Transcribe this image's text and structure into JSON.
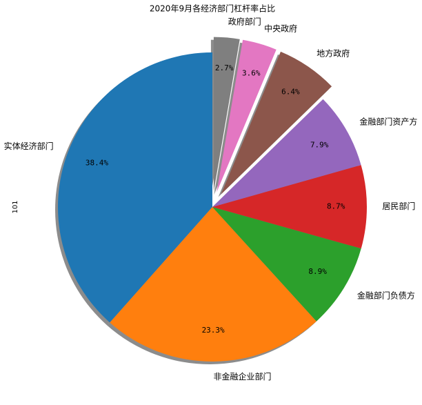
{
  "chart_data": {
    "type": "pie",
    "title": "2020年9月各经济部门杠杆率占比",
    "ylabel": "101",
    "categories": [
      "实体经济部门",
      "非金融企业部门",
      "金融部门负债方",
      "居民部门",
      "金融部门资产方",
      "地方政府",
      "中央政府",
      "政府部门"
    ],
    "values": [
      38.4,
      23.3,
      8.9,
      8.7,
      7.9,
      6.4,
      3.6,
      2.7
    ],
    "value_labels": [
      "38.4%",
      "23.3%",
      "8.9%",
      "8.7%",
      "7.9%",
      "6.4%",
      "3.6%",
      "2.7%"
    ],
    "colors": [
      "#1f77b4",
      "#ff7f0e",
      "#2ca02c",
      "#d62728",
      "#9467bd",
      "#8c564b",
      "#e377c2",
      "#7f7f7f"
    ],
    "explode": [
      0,
      0,
      0,
      0,
      0,
      0.1,
      0.1,
      0.1
    ],
    "startangle": 90,
    "shadow": true
  }
}
